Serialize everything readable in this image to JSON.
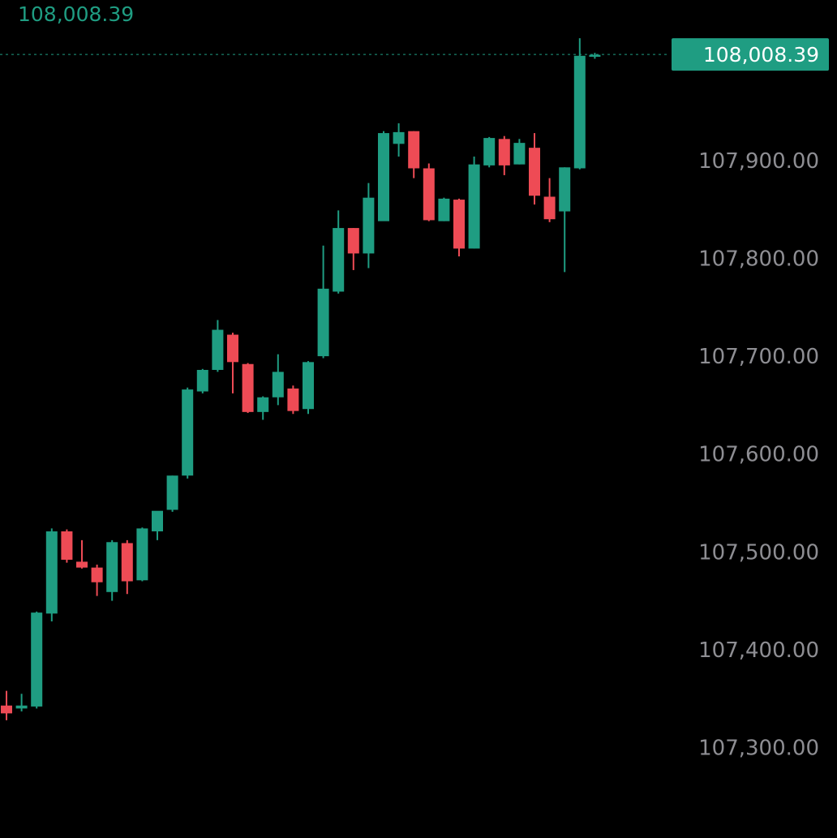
{
  "chart_data": {
    "type": "candlestick",
    "title": "",
    "current_price_label": "108,008.39",
    "price_tag": "108,008.39",
    "y_ticks": [
      {
        "value": 107900,
        "label": "107,900.00"
      },
      {
        "value": 107800,
        "label": "107,800.00"
      },
      {
        "value": 107700,
        "label": "107,700.00"
      },
      {
        "value": 107600,
        "label": "107,600.00"
      },
      {
        "value": 107500,
        "label": "107,500.00"
      },
      {
        "value": 107400,
        "label": "107,400.00"
      },
      {
        "value": 107300,
        "label": "107,300.00"
      }
    ],
    "ylim": [
      107235,
      108035
    ],
    "current_price": 108008.39,
    "grid": false,
    "colors": {
      "up": "#1f9d82",
      "down": "#ee4b55",
      "axis_text": "#8e8e93",
      "price_line": "#1f9d82",
      "background": "#000000"
    },
    "candles": [
      {
        "o": 107343,
        "h": 107358,
        "l": 107328,
        "c": 107335
      },
      {
        "o": 107340,
        "h": 107355,
        "l": 107337,
        "c": 107343
      },
      {
        "o": 107342,
        "h": 107439,
        "l": 107340,
        "c": 107438
      },
      {
        "o": 107437,
        "h": 107524,
        "l": 107429,
        "c": 107521
      },
      {
        "o": 107521,
        "h": 107523,
        "l": 107489,
        "c": 107492
      },
      {
        "o": 107490,
        "h": 107512,
        "l": 107483,
        "c": 107484
      },
      {
        "o": 107484,
        "h": 107487,
        "l": 107455,
        "c": 107469
      },
      {
        "o": 107459,
        "h": 107512,
        "l": 107450,
        "c": 107510
      },
      {
        "o": 107509,
        "h": 107512,
        "l": 107457,
        "c": 107470
      },
      {
        "o": 107471,
        "h": 107525,
        "l": 107470,
        "c": 107524
      },
      {
        "o": 107521,
        "h": 107541,
        "l": 107512,
        "c": 107542
      },
      {
        "o": 107543,
        "h": 107578,
        "l": 107541,
        "c": 107578
      },
      {
        "o": 107578,
        "h": 107668,
        "l": 107575,
        "c": 107666
      },
      {
        "o": 107664,
        "h": 107687,
        "l": 107662,
        "c": 107686
      },
      {
        "o": 107686,
        "h": 107737,
        "l": 107684,
        "c": 107727
      },
      {
        "o": 107722,
        "h": 107724,
        "l": 107662,
        "c": 107694
      },
      {
        "o": 107692,
        "h": 107693,
        "l": 107642,
        "c": 107643
      },
      {
        "o": 107643,
        "h": 107659,
        "l": 107635,
        "c": 107658
      },
      {
        "o": 107658,
        "h": 107702,
        "l": 107650,
        "c": 107684
      },
      {
        "o": 107667,
        "h": 107670,
        "l": 107641,
        "c": 107644
      },
      {
        "o": 107646,
        "h": 107695,
        "l": 107641,
        "c": 107694
      },
      {
        "o": 107700,
        "h": 107813,
        "l": 107698,
        "c": 107769
      },
      {
        "o": 107766,
        "h": 107849,
        "l": 107764,
        "c": 107831
      },
      {
        "o": 107831,
        "h": 107831,
        "l": 107788,
        "c": 107805
      },
      {
        "o": 107805,
        "h": 107877,
        "l": 107790,
        "c": 107862
      },
      {
        "o": 107838,
        "h": 107930,
        "l": 107842,
        "c": 107928
      },
      {
        "o": 107917,
        "h": 107938,
        "l": 107904,
        "c": 107929
      },
      {
        "o": 107930,
        "h": 107930,
        "l": 107882,
        "c": 107892
      },
      {
        "o": 107892,
        "h": 107897,
        "l": 107838,
        "c": 107839
      },
      {
        "o": 107838,
        "h": 107862,
        "l": 107838,
        "c": 107861
      },
      {
        "o": 107860,
        "h": 107861,
        "l": 107802,
        "c": 107810
      },
      {
        "o": 107810,
        "h": 107904,
        "l": 107810,
        "c": 107896
      },
      {
        "o": 107895,
        "h": 107924,
        "l": 107893,
        "c": 107923
      },
      {
        "o": 107922,
        "h": 107925,
        "l": 107885,
        "c": 107895
      },
      {
        "o": 107896,
        "h": 107922,
        "l": 107896,
        "c": 107918
      },
      {
        "o": 107913,
        "h": 107928,
        "l": 107855,
        "c": 107864
      },
      {
        "o": 107863,
        "h": 107882,
        "l": 107837,
        "c": 107840
      },
      {
        "o": 107848,
        "h": 107893,
        "l": 107786,
        "c": 107893
      },
      {
        "o": 107892,
        "h": 108025,
        "l": 107891,
        "c": 108007
      },
      {
        "o": 108006,
        "h": 108010,
        "l": 108004,
        "c": 108008
      }
    ]
  }
}
